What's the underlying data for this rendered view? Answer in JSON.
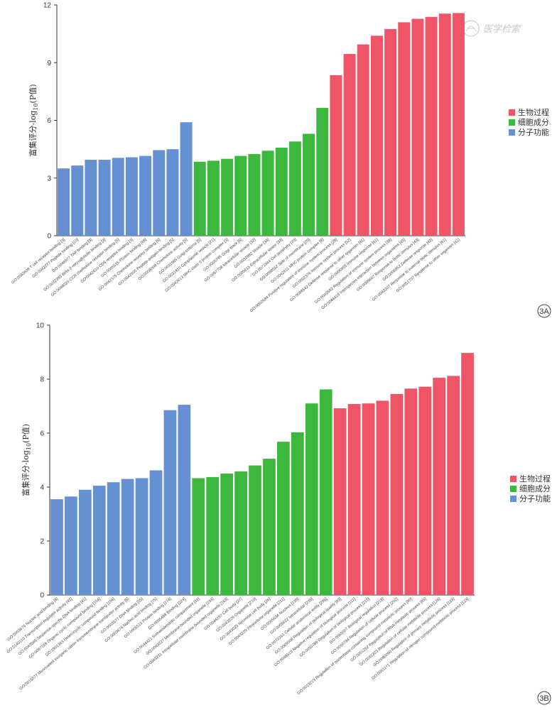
{
  "watermark": "医学检索",
  "colors": {
    "biological_process": "#ef5566",
    "cellular_component": "#3cb83c",
    "molecular_function": "#6690d4"
  },
  "chart_data": [
    {
      "panel": "3A",
      "type": "bar",
      "ylabel_main": "富集评分",
      "ylabel_log": "-log",
      "ylabel_sub": "10",
      "ylabel_tail": "(P值)",
      "ylim": [
        0,
        12
      ],
      "yticks": [
        "0",
        "3",
        "6",
        "9",
        "12"
      ],
      "legend": [
        "生物过程",
        "细胞成分",
        "分子功能"
      ],
      "categories": [
        "GO:0042608 T cell receptor binding [3]",
        "GO:0042277 Peptide binding [10]",
        "GO:0046977 TAP binding [3]",
        "GO:0032393 Beta-2-microglobulin binding [3]",
        "GO:0048020 CCR chemokine receptor binding [5]",
        "GO:0042610 CD8 receptor binding [3]",
        "GO:0005515 Protein binding [68]",
        "GO:0042379 Chemokine receptor binding [6]",
        "GO:0042605 Peptide antigen binding [5]",
        "GO:0008009 Chemokine activity [5]",
        "GO:0031985 Golgi cisterna [5]",
        "GO:0031410 Cytoplasmic vesicle [21]",
        "GO:0042613 MHC class II protein complex [3]",
        "GO:0005795 Golgi stack [6]",
        "GO:0097708 Intracellular vesicle [32]",
        "GO:0031982 Vesicle [34]",
        "GO:0005615 Extracellular space [33]",
        "GO:0071944 Cell periphery [70]",
        "GO:0098552 Side of membrane [20]",
        "GO:0042611 MHC protein complex [8]",
        "GO:0002684 Positive regulation of immune system process [28]",
        "GO:0002376 Immune system process [52]",
        "GO:0098542 Defense response to other organism [41]",
        "GO:0006955 Immune response [41]",
        "GO:0002682 Regulation of immune system process [38]",
        "GO:0044419 Interspecies interaction between organisms [45]",
        "GO:0009607 Response to biotic stimulus [43]",
        "GO:0006952 Defense response [42]",
        "GO:0043207 Response to external biotic stimulus [41]",
        "GO:0051707 Response to other organism [41]"
      ],
      "groups": [
        "MF",
        "MF",
        "MF",
        "MF",
        "MF",
        "MF",
        "MF",
        "MF",
        "MF",
        "MF",
        "CC",
        "CC",
        "CC",
        "CC",
        "CC",
        "CC",
        "CC",
        "CC",
        "CC",
        "CC",
        "BP",
        "BP",
        "BP",
        "BP",
        "BP",
        "BP",
        "BP",
        "BP",
        "BP",
        "BP"
      ],
      "values": [
        3.5,
        3.65,
        3.95,
        3.95,
        4.05,
        4.08,
        4.15,
        4.45,
        4.5,
        5.9,
        3.85,
        3.9,
        4.0,
        4.15,
        4.25,
        4.42,
        4.58,
        4.9,
        5.3,
        6.65,
        8.35,
        9.45,
        9.95,
        10.4,
        10.75,
        11.1,
        11.28,
        11.38,
        11.55,
        11.58
      ]
    },
    {
      "panel": "3B",
      "type": "bar",
      "ylabel_main": "富集评分",
      "ylabel_log": "-log",
      "ylabel_sub": "10",
      "ylabel_tail": "(P值)",
      "ylim": [
        0,
        10
      ],
      "yticks": [
        "0",
        "2",
        "4",
        "6",
        "8",
        "10"
      ],
      "legend": [
        "生物过程",
        "细胞成分",
        "分子功能"
      ],
      "categories": [
        "GO:0003676 Nucleic acid binding [8]",
        "GO:0140110 Transcription regulator activity [41]",
        "GO:0043565 Sequence-specific DNA binding [41]",
        "GO:0097159 Organic cyclic compound binding [104]",
        "GO:1901363 Heterocyclic compound binding [104]",
        "GO:0015077 Monovalent inorganic cation transmembrane transporter activity [8]",
        "GO:0003677 DNA binding [55]",
        "GO:0003676 Nucleic acid binding [75]",
        "GO:0005515 Protein binding [174]",
        "GO:0005488 Binding [224]",
        "GO:0044421 Somatodendritic compartment [31]",
        "GO:0043227 Membrane-bounded organelle [193]",
        "GO:0043231 Intracellular membrane-bounded organelle [163]",
        "GO:0044297 Cell body [27]",
        "GO:0043226 Organelle [210]",
        "GO:0043025 Neuronal cell body [26]",
        "GO:0043229 Intracellular organelle [211]",
        "GO:0005634 Nucleus [139]",
        "GO:0005622 Intracellular [239]",
        "GO:0070161 Cellular anatomical entity [296]",
        "GO:0065008 Regulation of biological quality [93]",
        "GO:0048519 Negative regulation of biological process [111]",
        "GO:0050789 Regulation of biological process [210]",
        "GO:0065007 Biological regulation [218]",
        "GO:0050794 Regulation of cellular process [202]",
        "GO:0019219 Regulation of nucleobase-containing compound metabolic process [90]",
        "GO:0051252 Regulation of RNA metabolic process [85]",
        "GO:0031323 Regulation of cellular metabolic process [126]",
        "GO:0080090 Regulation of primary metabolic process [123]",
        "GO:0051171 Regulation of nitrogen compound metabolic process [123]"
      ],
      "groups": [
        "MF",
        "MF",
        "MF",
        "MF",
        "MF",
        "MF",
        "MF",
        "MF",
        "MF",
        "MF",
        "CC",
        "CC",
        "CC",
        "CC",
        "CC",
        "CC",
        "CC",
        "CC",
        "CC",
        "CC",
        "BP",
        "BP",
        "BP",
        "BP",
        "BP",
        "BP",
        "BP",
        "BP",
        "BP",
        "BP"
      ],
      "values": [
        3.55,
        3.65,
        3.9,
        4.05,
        4.18,
        4.3,
        4.33,
        4.62,
        6.85,
        7.05,
        4.33,
        4.37,
        4.5,
        4.58,
        4.8,
        5.05,
        5.68,
        6.03,
        7.1,
        7.62,
        6.92,
        7.08,
        7.1,
        7.2,
        7.45,
        7.65,
        7.72,
        8.05,
        8.12,
        8.97
      ]
    }
  ]
}
